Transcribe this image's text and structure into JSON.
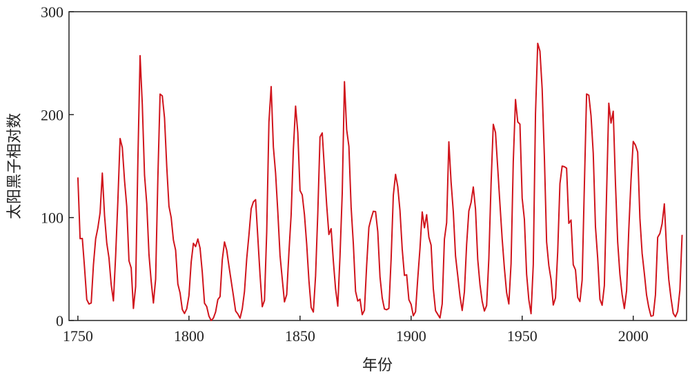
{
  "chart_data": {
    "type": "line",
    "xlabel": "年份",
    "ylabel": "太阳黑子相对数",
    "x": [
      1750,
      1751,
      1752,
      1753,
      1754,
      1755,
      1756,
      1757,
      1758,
      1759,
      1760,
      1761,
      1762,
      1763,
      1764,
      1765,
      1766,
      1767,
      1768,
      1769,
      1770,
      1771,
      1772,
      1773,
      1774,
      1775,
      1776,
      1777,
      1778,
      1779,
      1780,
      1781,
      1782,
      1783,
      1784,
      1785,
      1786,
      1787,
      1788,
      1789,
      1790,
      1791,
      1792,
      1793,
      1794,
      1795,
      1796,
      1797,
      1798,
      1799,
      1800,
      1801,
      1802,
      1803,
      1804,
      1805,
      1806,
      1807,
      1808,
      1809,
      1810,
      1811,
      1812,
      1813,
      1814,
      1815,
      1816,
      1817,
      1818,
      1819,
      1820,
      1821,
      1822,
      1823,
      1824,
      1825,
      1826,
      1827,
      1828,
      1829,
      1830,
      1831,
      1832,
      1833,
      1834,
      1835,
      1836,
      1837,
      1838,
      1839,
      1840,
      1841,
      1842,
      1843,
      1844,
      1845,
      1846,
      1847,
      1848,
      1849,
      1850,
      1851,
      1852,
      1853,
      1854,
      1855,
      1856,
      1857,
      1858,
      1859,
      1860,
      1861,
      1862,
      1863,
      1864,
      1865,
      1866,
      1867,
      1868,
      1869,
      1870,
      1871,
      1872,
      1873,
      1874,
      1875,
      1876,
      1877,
      1878,
      1879,
      1880,
      1881,
      1882,
      1883,
      1884,
      1885,
      1886,
      1887,
      1888,
      1889,
      1890,
      1891,
      1892,
      1893,
      1894,
      1895,
      1896,
      1897,
      1898,
      1899,
      1900,
      1901,
      1902,
      1903,
      1904,
      1905,
      1906,
      1907,
      1908,
      1909,
      1910,
      1911,
      1912,
      1913,
      1914,
      1915,
      1916,
      1917,
      1918,
      1919,
      1920,
      1921,
      1922,
      1923,
      1924,
      1925,
      1926,
      1927,
      1928,
      1929,
      1930,
      1931,
      1932,
      1933,
      1934,
      1935,
      1936,
      1937,
      1938,
      1939,
      1940,
      1941,
      1942,
      1943,
      1944,
      1945,
      1946,
      1947,
      1948,
      1949,
      1950,
      1951,
      1952,
      1953,
      1954,
      1955,
      1956,
      1957,
      1958,
      1959,
      1960,
      1961,
      1962,
      1963,
      1964,
      1965,
      1966,
      1967,
      1968,
      1969,
      1970,
      1971,
      1972,
      1973,
      1974,
      1975,
      1976,
      1977,
      1978,
      1979,
      1980,
      1981,
      1982,
      1983,
      1984,
      1985,
      1986,
      1987,
      1988,
      1989,
      1990,
      1991,
      1992,
      1993,
      1994,
      1995,
      1996,
      1997,
      1998,
      1999,
      2000,
      2001,
      2002,
      2003,
      2004,
      2005,
      2006,
      2007,
      2008,
      2009,
      2010,
      2011,
      2012,
      2013,
      2014,
      2015,
      2016,
      2017,
      2018,
      2019,
      2020,
      2021,
      2022
    ],
    "series": [
      {
        "name": "太阳黑子相对数",
        "color": "#d0141c",
        "values": [
          139,
          79.5,
          79.7,
          51.2,
          20.3,
          16,
          17,
          54,
          79.3,
          90,
          104.8,
          143.2,
          102,
          75.2,
          60.7,
          34.8,
          19,
          63,
          116.3,
          176.8,
          168,
          136,
          110.8,
          58,
          51,
          11.7,
          33,
          154.2,
          257.3,
          209.8,
          141.3,
          113.5,
          64.2,
          38,
          17,
          40.2,
          138.2,
          220,
          218.2,
          196.8,
          149.8,
          111,
          100,
          78.2,
          68.3,
          35.5,
          26.7,
          10.7,
          6.8,
          11.3,
          24.2,
          56.7,
          75,
          71.8,
          79.2,
          70.3,
          46.8,
          16.8,
          13.5,
          4.2,
          0,
          2.3,
          8.3,
          20.3,
          23.2,
          59,
          76.3,
          68.3,
          52.9,
          38.5,
          24.2,
          9.2,
          6.3,
          2.2,
          11.4,
          28.2,
          59.9,
          83,
          108.5,
          115.2,
          117.4,
          80.8,
          44.3,
          13.4,
          19.5,
          85.8,
          192.7,
          227.3,
          168.7,
          143,
          105.5,
          63.3,
          40.3,
          18.1,
          25.1,
          65.8,
          102.7,
          166.3,
          208.3,
          182.5,
          126.3,
          122,
          102.7,
          74.1,
          39,
          12.7,
          8.2,
          43.4,
          104.4,
          178.3,
          182.2,
          146.6,
          112.1,
          83.5,
          89.2,
          57.8,
          30.7,
          13.9,
          62.8,
          123.6,
          232,
          185.3,
          169.2,
          110.1,
          74.5,
          28.3,
          18.9,
          20.7,
          5.7,
          10,
          53.7,
          90.5,
          99,
          106.1,
          105.8,
          86.3,
          42.4,
          21.8,
          11.2,
          10.4,
          11.8,
          59.5,
          121.7,
          142,
          130,
          106.6,
          69.4,
          43.8,
          44.4,
          20.2,
          15.7,
          4.6,
          8.5,
          40.8,
          70.1,
          105.5,
          90.1,
          102.8,
          80.9,
          73.2,
          30.9,
          9.5,
          6,
          2.4,
          16.1,
          79,
          95,
          173.6,
          134.6,
          105.7,
          62.7,
          43.5,
          23.7,
          9.7,
          27.9,
          74,
          106.5,
          114.7,
          129.7,
          108.2,
          59.4,
          35.1,
          18.6,
          9.2,
          14.6,
          60.2,
          132.8,
          190.6,
          182.6,
          148,
          113,
          79.2,
          50.8,
          27.1,
          16.1,
          55.3,
          154.3,
          214.7,
          193,
          190.7,
          118.9,
          98.3,
          45,
          20.1,
          6.6,
          54.2,
          200.7,
          269.3,
          261.7,
          225.1,
          159,
          76.4,
          53.4,
          39.9,
          15,
          22,
          66.8,
          132.9,
          150,
          149.4,
          148,
          94.4,
          97.6,
          54.1,
          49.2,
          22.5,
          18.4,
          39.3,
          131,
          220.1,
          218.9,
          198.9,
          162.4,
          91,
          60.5,
          20.6,
          14.8,
          33.9,
          123,
          211.1,
          191.8,
          203.3,
          133,
          76.1,
          44.9,
          25.1,
          11.6,
          28.9,
          88.3,
          136.3,
          173.9,
          170.4,
          163.6,
          99.3,
          65.3,
          45.8,
          24.7,
          12.6,
          4.2,
          4.8,
          24.9,
          80.8,
          84.5,
          94,
          113.3,
          69.8,
          39.8,
          21.7,
          7,
          3.6,
          8.8,
          29.6,
          83.2
        ]
      }
    ],
    "xlim": [
      1746,
      2024
    ],
    "xticks": [
      1750,
      1800,
      1850,
      1900,
      1950,
      2000
    ],
    "ylim": [
      0,
      300
    ],
    "yticks": [
      0,
      100,
      200,
      300
    ],
    "grid": false
  }
}
